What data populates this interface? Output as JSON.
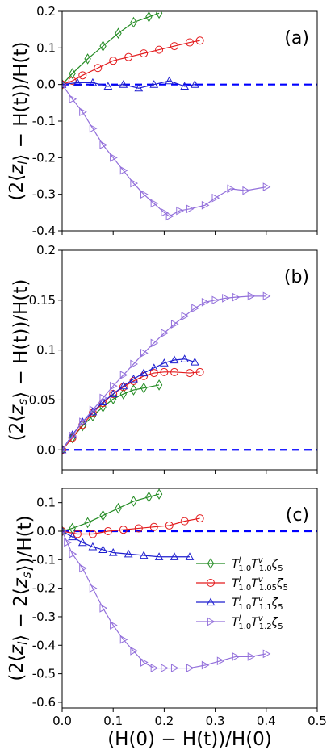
{
  "chart_data": [
    {
      "type": "line",
      "panel_label": "(a)",
      "ylabel": "(2⟨z_l⟩ − H(t))/H(t)",
      "xlim": [
        0,
        0.5
      ],
      "ylim": [
        -0.4,
        0.2
      ],
      "yticks": [
        -0.4,
        -0.3,
        -0.2,
        -0.1,
        0.0,
        0.1,
        0.2
      ],
      "ytick_labels": [
        "-0.4",
        "-0.3",
        "-0.2",
        "-0.1",
        "0.0",
        "0.1",
        "0.2"
      ],
      "reference_line": {
        "y": 0,
        "style": "dashed",
        "color": "#0000ff"
      },
      "series": [
        {
          "color": "#228b22",
          "marker": "diamond",
          "x": [
            0,
            0.02,
            0.05,
            0.08,
            0.11,
            0.14,
            0.17,
            0.19
          ],
          "y": [
            0,
            0.03,
            0.07,
            0.105,
            0.14,
            0.17,
            0.185,
            0.195
          ]
        },
        {
          "color": "#e31a1c",
          "marker": "circle",
          "x": [
            0,
            0.02,
            0.04,
            0.07,
            0.1,
            0.13,
            0.16,
            0.19,
            0.22,
            0.25,
            0.27
          ],
          "y": [
            0,
            0.01,
            0.025,
            0.045,
            0.065,
            0.075,
            0.085,
            0.095,
            0.105,
            0.115,
            0.12
          ]
        },
        {
          "color": "#1f1fcf",
          "marker": "triangle-up",
          "x": [
            0,
            0.03,
            0.06,
            0.09,
            0.12,
            0.15,
            0.18,
            0.21,
            0.24,
            0.26
          ],
          "y": [
            0,
            0.005,
            0.005,
            -0.005,
            0.0,
            -0.01,
            0.0,
            0.01,
            -0.005,
            0.0
          ]
        },
        {
          "color": "#9370db",
          "marker": "triangle-right",
          "x": [
            0,
            0.02,
            0.04,
            0.06,
            0.08,
            0.1,
            0.12,
            0.14,
            0.16,
            0.18,
            0.2,
            0.21,
            0.23,
            0.25,
            0.28,
            0.3,
            0.33,
            0.36,
            0.4
          ],
          "y": [
            0,
            -0.04,
            -0.075,
            -0.12,
            -0.165,
            -0.2,
            -0.235,
            -0.27,
            -0.3,
            -0.325,
            -0.35,
            -0.36,
            -0.345,
            -0.34,
            -0.33,
            -0.31,
            -0.285,
            -0.29,
            -0.28
          ]
        }
      ]
    },
    {
      "type": "line",
      "panel_label": "(b)",
      "ylabel": "(2⟨z_s⟩ − H(t))/H(t)",
      "xlim": [
        0,
        0.5
      ],
      "ylim": [
        -0.02,
        0.2
      ],
      "yticks": [
        0.0,
        0.05,
        0.1,
        0.15,
        0.2
      ],
      "ytick_labels": [
        "0.0",
        "0.05",
        "0.1",
        "0.15",
        "0.2"
      ],
      "reference_line": {
        "y": 0,
        "style": "dashed",
        "color": "#0000ff"
      },
      "series": [
        {
          "color": "#228b22",
          "marker": "diamond",
          "x": [
            0,
            0.02,
            0.04,
            0.06,
            0.08,
            0.1,
            0.12,
            0.14,
            0.16,
            0.19
          ],
          "y": [
            0,
            0.012,
            0.024,
            0.034,
            0.043,
            0.051,
            0.056,
            0.06,
            0.062,
            0.065
          ]
        },
        {
          "color": "#e31a1c",
          "marker": "circle",
          "x": [
            0,
            0.02,
            0.04,
            0.06,
            0.08,
            0.1,
            0.12,
            0.14,
            0.16,
            0.18,
            0.2,
            0.22,
            0.25,
            0.27
          ],
          "y": [
            0,
            0.012,
            0.025,
            0.037,
            0.047,
            0.056,
            0.063,
            0.069,
            0.074,
            0.077,
            0.078,
            0.078,
            0.077,
            0.078
          ]
        },
        {
          "color": "#1f1fcf",
          "marker": "triangle-up",
          "x": [
            0,
            0.02,
            0.04,
            0.06,
            0.08,
            0.1,
            0.12,
            0.14,
            0.16,
            0.18,
            0.2,
            0.22,
            0.24,
            0.26
          ],
          "y": [
            0,
            0.015,
            0.028,
            0.038,
            0.048,
            0.056,
            0.064,
            0.071,
            0.077,
            0.082,
            0.087,
            0.09,
            0.091,
            0.088
          ]
        },
        {
          "color": "#9370db",
          "marker": "triangle-right",
          "x": [
            0,
            0.02,
            0.04,
            0.06,
            0.08,
            0.1,
            0.12,
            0.14,
            0.16,
            0.18,
            0.2,
            0.22,
            0.24,
            0.26,
            0.28,
            0.3,
            0.32,
            0.34,
            0.37,
            0.4
          ],
          "y": [
            0,
            0.014,
            0.028,
            0.04,
            0.052,
            0.064,
            0.075,
            0.086,
            0.097,
            0.107,
            0.117,
            0.126,
            0.134,
            0.142,
            0.148,
            0.15,
            0.152,
            0.153,
            0.154,
            0.154
          ]
        }
      ]
    },
    {
      "type": "line",
      "panel_label": "(c)",
      "ylabel": "(2⟨z_l⟩ − 2⟨z_s⟩)/H(t)",
      "xlabel": "(H(0) − H(t))/H(0)",
      "xlim": [
        0,
        0.5
      ],
      "ylim": [
        -0.62,
        0.15
      ],
      "xticks": [
        0.0,
        0.1,
        0.2,
        0.3,
        0.4,
        0.5
      ],
      "xtick_labels": [
        "0.0",
        "0.1",
        "0.2",
        "0.3",
        "0.4",
        "0.5"
      ],
      "yticks": [
        -0.6,
        -0.5,
        -0.4,
        -0.3,
        -0.2,
        -0.1,
        0.0,
        0.1
      ],
      "ytick_labels": [
        "-0.6",
        "-0.5",
        "-0.4",
        "-0.3",
        "-0.2",
        "-0.1",
        "0.0",
        "0.1"
      ],
      "reference_line": {
        "y": 0,
        "style": "dashed",
        "color": "#0000ff"
      },
      "legend_position": "center-right",
      "legend": [
        {
          "label": "T^l_1.0 T^v_1.0 ζ5"
        },
        {
          "label": "T^l_1.0 T^v_1.05 ζ5"
        },
        {
          "label": "T^l_1.0 T^v_1.1 ζ5"
        },
        {
          "label": "T^l_1.0 T^v_1.2 ζ5"
        }
      ],
      "series": [
        {
          "color": "#228b22",
          "marker": "diamond",
          "x": [
            0,
            0.02,
            0.05,
            0.08,
            0.11,
            0.14,
            0.17,
            0.19
          ],
          "y": [
            0,
            0.01,
            0.03,
            0.055,
            0.08,
            0.105,
            0.12,
            0.13
          ]
        },
        {
          "color": "#e31a1c",
          "marker": "circle",
          "x": [
            0,
            0.03,
            0.06,
            0.09,
            0.12,
            0.15,
            0.18,
            0.21,
            0.24,
            0.27
          ],
          "y": [
            0,
            -0.01,
            -0.01,
            0.0,
            0.005,
            0.01,
            0.015,
            0.02,
            0.035,
            0.045
          ]
        },
        {
          "color": "#1f1fcf",
          "marker": "triangle-up",
          "x": [
            0,
            0.02,
            0.04,
            0.06,
            0.08,
            0.1,
            0.13,
            0.16,
            0.19,
            0.22,
            0.25
          ],
          "y": [
            0,
            -0.02,
            -0.04,
            -0.055,
            -0.065,
            -0.075,
            -0.08,
            -0.085,
            -0.09,
            -0.09,
            -0.09
          ]
        },
        {
          "color": "#9370db",
          "marker": "triangle-right",
          "x": [
            0,
            0.01,
            0.02,
            0.04,
            0.06,
            0.08,
            0.1,
            0.12,
            0.14,
            0.16,
            0.18,
            0.2,
            0.22,
            0.25,
            0.28,
            0.31,
            0.34,
            0.37,
            0.4
          ],
          "y": [
            0,
            -0.04,
            -0.08,
            -0.13,
            -0.2,
            -0.27,
            -0.33,
            -0.38,
            -0.42,
            -0.46,
            -0.48,
            -0.48,
            -0.48,
            -0.48,
            -0.47,
            -0.455,
            -0.44,
            -0.44,
            -0.43
          ]
        }
      ]
    }
  ]
}
